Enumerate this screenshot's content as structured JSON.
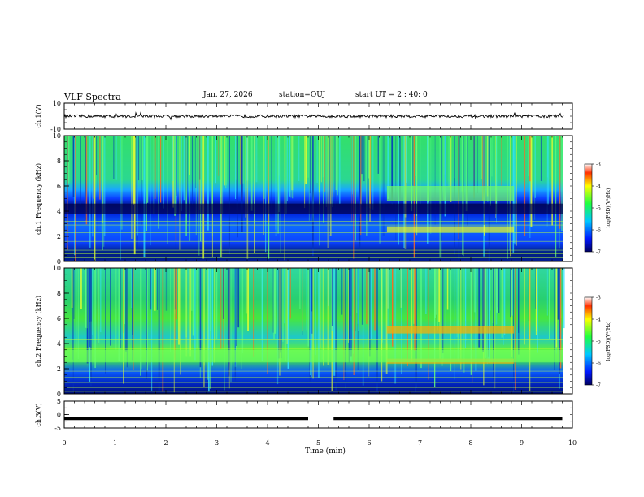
{
  "header": {
    "title": "VLF Spectra",
    "date": "Jan. 27, 2026",
    "station": "station=OUJ",
    "start": "start UT =  2 : 40: 0"
  },
  "chart_data": [
    {
      "type": "line",
      "title": "",
      "ylabel": "ch.1(V)",
      "ylim": [
        -10,
        10
      ],
      "yticks": [
        "10",
        "-10"
      ],
      "x": [
        0,
        0.5,
        1,
        1.5,
        2,
        2.5,
        3,
        3.5,
        4,
        4.5,
        5,
        5.5,
        6,
        6.5,
        7,
        7.5,
        8,
        8.5,
        9,
        9.5,
        9.8
      ],
      "values": [
        0.2,
        0.0,
        0.3,
        -0.1,
        0.2,
        0.1,
        0.0,
        0.3,
        0.1,
        -0.2,
        0.2,
        0.1,
        0.0,
        0.3,
        0.2,
        0.0,
        0.1,
        0.2,
        0.0,
        0.1,
        0.2
      ]
    },
    {
      "type": "heatmap",
      "ylabel": "ch.1 Frequency (kHz)",
      "ylim": [
        0,
        10
      ],
      "yticks": [
        "0",
        "2",
        "4",
        "6",
        "8",
        "10"
      ],
      "colorbar_label": "log(PSD)(V²/Hz)",
      "colorbar_range": [
        -7,
        -3
      ],
      "colorbar_ticks": [
        "-3",
        "-4",
        "-5",
        "-6",
        "-7"
      ],
      "features": [
        {
          "band": "dark band",
          "freq_khz": [
            3.8,
            4.6
          ],
          "level": -6.8
        },
        {
          "band": "enhanced emission",
          "time_min": [
            6.35,
            8.85
          ],
          "freq_khz": [
            2.3,
            2.8
          ],
          "level": -4.9
        },
        {
          "band": "enhanced emission",
          "time_min": [
            6.35,
            8.85
          ],
          "freq_khz": [
            4.8,
            6.0
          ],
          "level": -5.2
        }
      ]
    },
    {
      "type": "heatmap",
      "ylabel": "ch.2 Frequency (kHz)",
      "ylim": [
        0,
        10
      ],
      "yticks": [
        "0",
        "2",
        "4",
        "6",
        "8",
        "10"
      ],
      "colorbar_label": "log(PSD)(V²/Hz)",
      "colorbar_range": [
        -7,
        -3
      ],
      "colorbar_ticks": [
        "-3",
        "-4",
        "-5",
        "-6",
        "-7"
      ],
      "features": [
        {
          "band": "enhanced emission",
          "time_min": [
            6.35,
            8.85
          ],
          "freq_khz": [
            4.8,
            5.4
          ],
          "level": -4.3
        },
        {
          "band": "enhanced emission",
          "time_min": [
            6.35,
            8.85
          ],
          "freq_khz": [
            2.4,
            2.8
          ],
          "level": -4.2
        },
        {
          "band": "broad band",
          "freq_khz": [
            2.5,
            3.5
          ],
          "level": -5.0
        }
      ]
    },
    {
      "type": "line",
      "ylabel": "ch.3(V)",
      "ylim": [
        -5,
        5
      ],
      "yticks": [
        "5",
        "0",
        "-5"
      ],
      "segments": [
        {
          "x": [
            0,
            4.8
          ],
          "y": -1.5
        },
        {
          "x": [
            5.3,
            9.8
          ],
          "y": -1.5
        }
      ]
    }
  ],
  "xaxis": {
    "label": "Time (min)",
    "ticks": [
      "0",
      "1",
      "2",
      "3",
      "4",
      "5",
      "6",
      "7",
      "8",
      "9",
      "10"
    ],
    "range": [
      0,
      10
    ]
  }
}
